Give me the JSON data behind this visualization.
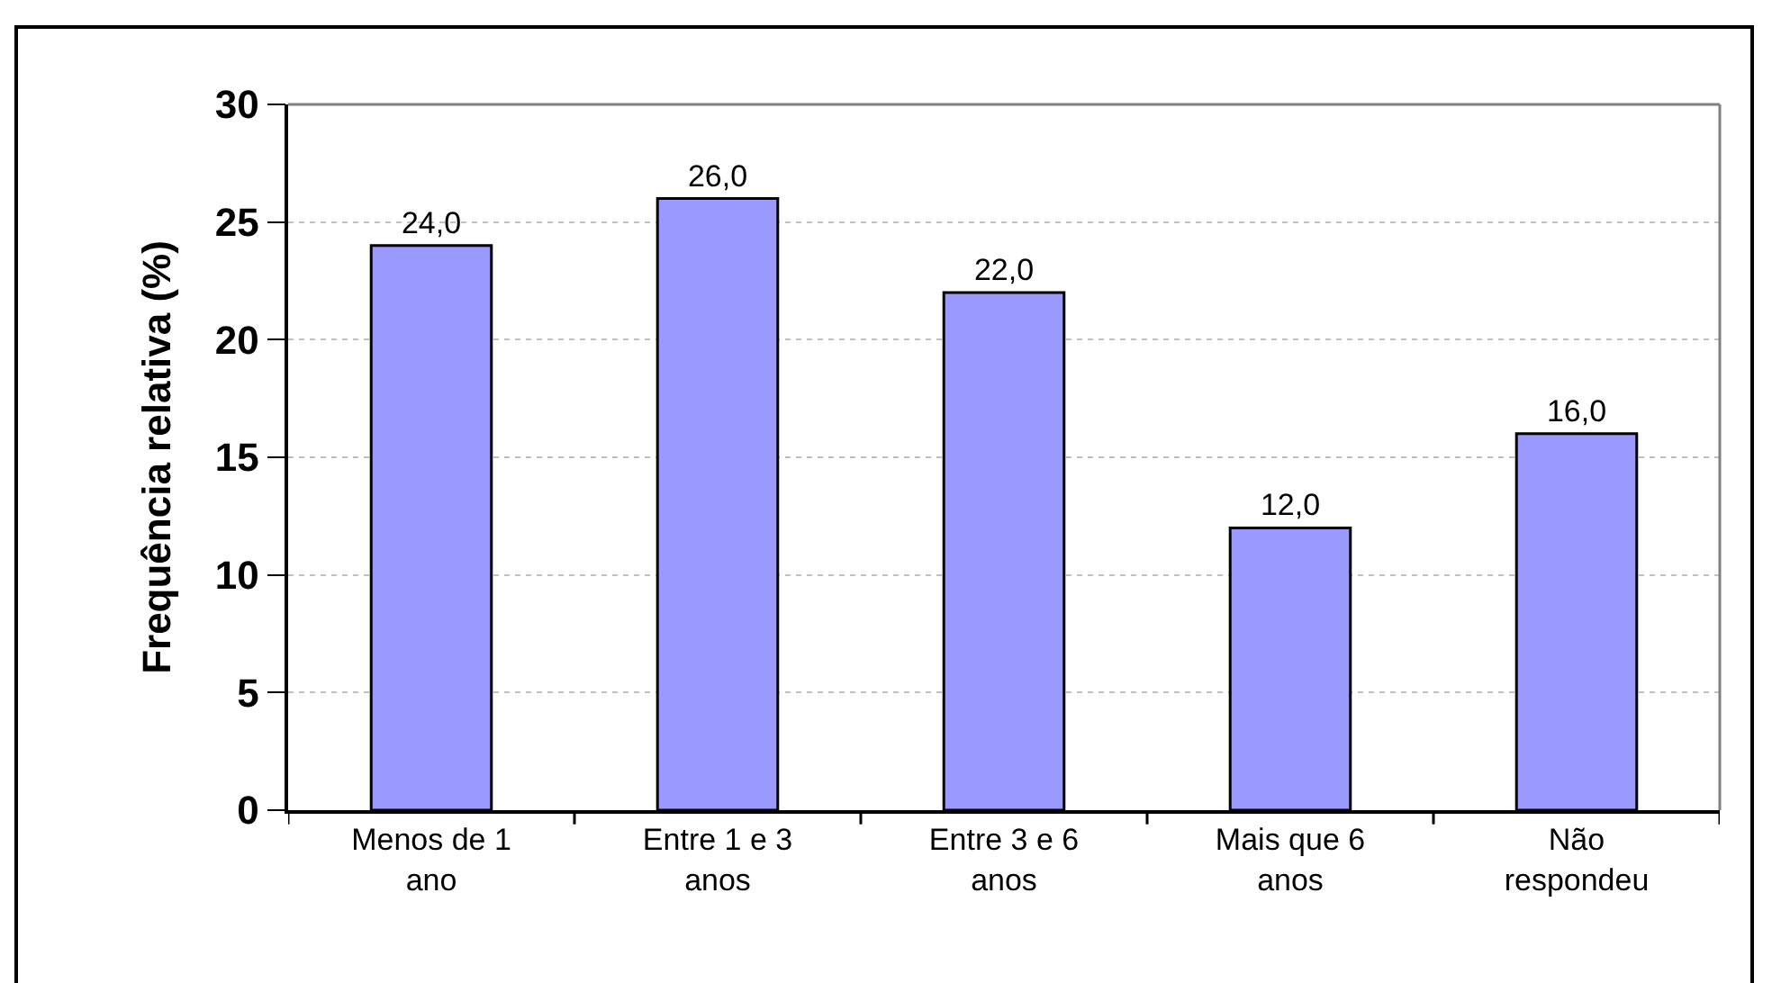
{
  "chart_data": {
    "type": "bar",
    "ylabel": "Frequência relativa (%)",
    "categories": [
      "Menos de 1\nano",
      "Entre 1 e 3\nanos",
      "Entre 3 e 6\nanos",
      "Mais que 6\nanos",
      "Não\nrespondeu"
    ],
    "values": [
      24.0,
      26.0,
      22.0,
      12.0,
      16.0
    ],
    "value_labels": [
      "24,0",
      "26,0",
      "22,0",
      "12,0",
      "16,0"
    ],
    "color": "#9999ff",
    "ylim": [
      0,
      30
    ],
    "yticks": [
      0,
      5,
      10,
      15,
      20,
      25,
      30
    ],
    "grid": "y",
    "legend": false
  }
}
